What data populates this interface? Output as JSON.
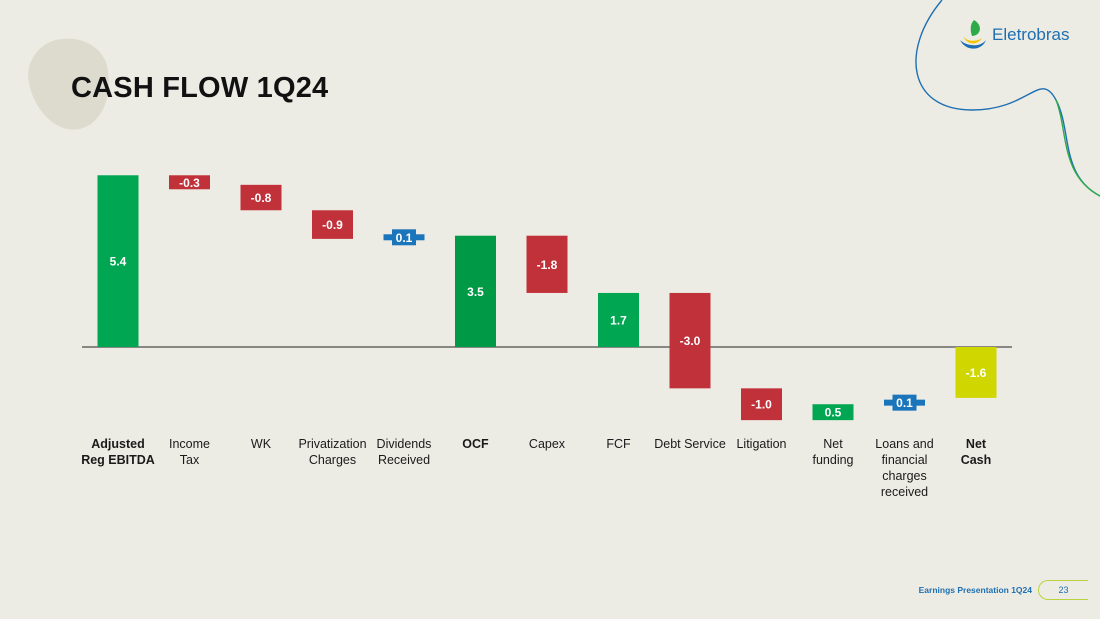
{
  "title": "CASH FLOW 1Q24",
  "brand": {
    "name": "Eletrobras",
    "logo_icon": "eletrobras-logo-icon"
  },
  "colors": {
    "background": "#edece4",
    "positive": "#00a651",
    "ocf": "#009a46",
    "negative": "#c1313a",
    "small_item": "#1b75bb",
    "net_cash": "#cfd600",
    "brand_blue": "#1d6fb2",
    "accent_green": "#2faa4a"
  },
  "chart_data": {
    "type": "waterfall",
    "title": "CASH FLOW 1Q24",
    "categories": [
      "Adjusted Reg EBITDA",
      "Income Tax",
      "WK",
      "Privatization Charges",
      "Dividends Received",
      "OCF",
      "Capex",
      "FCF",
      "Debt Service",
      "Litigation",
      "Net funding",
      "Loans and financial charges received",
      "Net Cash"
    ],
    "values": [
      5.4,
      -0.3,
      -0.8,
      -0.9,
      0.1,
      3.5,
      -1.8,
      1.7,
      -3.0,
      -1.0,
      0.5,
      0.1,
      -1.6
    ],
    "value_labels": [
      "5.4",
      "-0.3",
      "-0.8",
      "-0.9",
      "0.1",
      "3.5",
      "-1.8",
      "1.7",
      "-3.0",
      "-1.0",
      "0.5",
      "0.1",
      "-1.6"
    ],
    "bar_kind": [
      "total",
      "delta",
      "delta",
      "delta",
      "delta",
      "total",
      "delta",
      "total",
      "delta",
      "delta",
      "delta",
      "delta",
      "total"
    ],
    "bold_categories": [
      "Adjusted Reg EBITDA",
      "OCF",
      "Net Cash"
    ],
    "label_lines": [
      [
        "Adjusted",
        "Reg EBITDA"
      ],
      [
        "Income",
        "Tax"
      ],
      [
        "WK"
      ],
      [
        "Privatization",
        "Charges"
      ],
      [
        "Dividends",
        "Received"
      ],
      [
        "OCF"
      ],
      [
        "Capex"
      ],
      [
        "FCF"
      ],
      [
        "Debt Service"
      ],
      [
        "Litigation"
      ],
      [
        "Net",
        "funding"
      ],
      [
        "Loans and",
        "financial",
        "charges",
        "received"
      ],
      [
        "Net",
        "Cash"
      ]
    ],
    "y_baseline": 0,
    "grid": false,
    "legend": "none"
  },
  "footer": {
    "presentation": "Earnings Presentation 1Q24",
    "page": "23"
  }
}
